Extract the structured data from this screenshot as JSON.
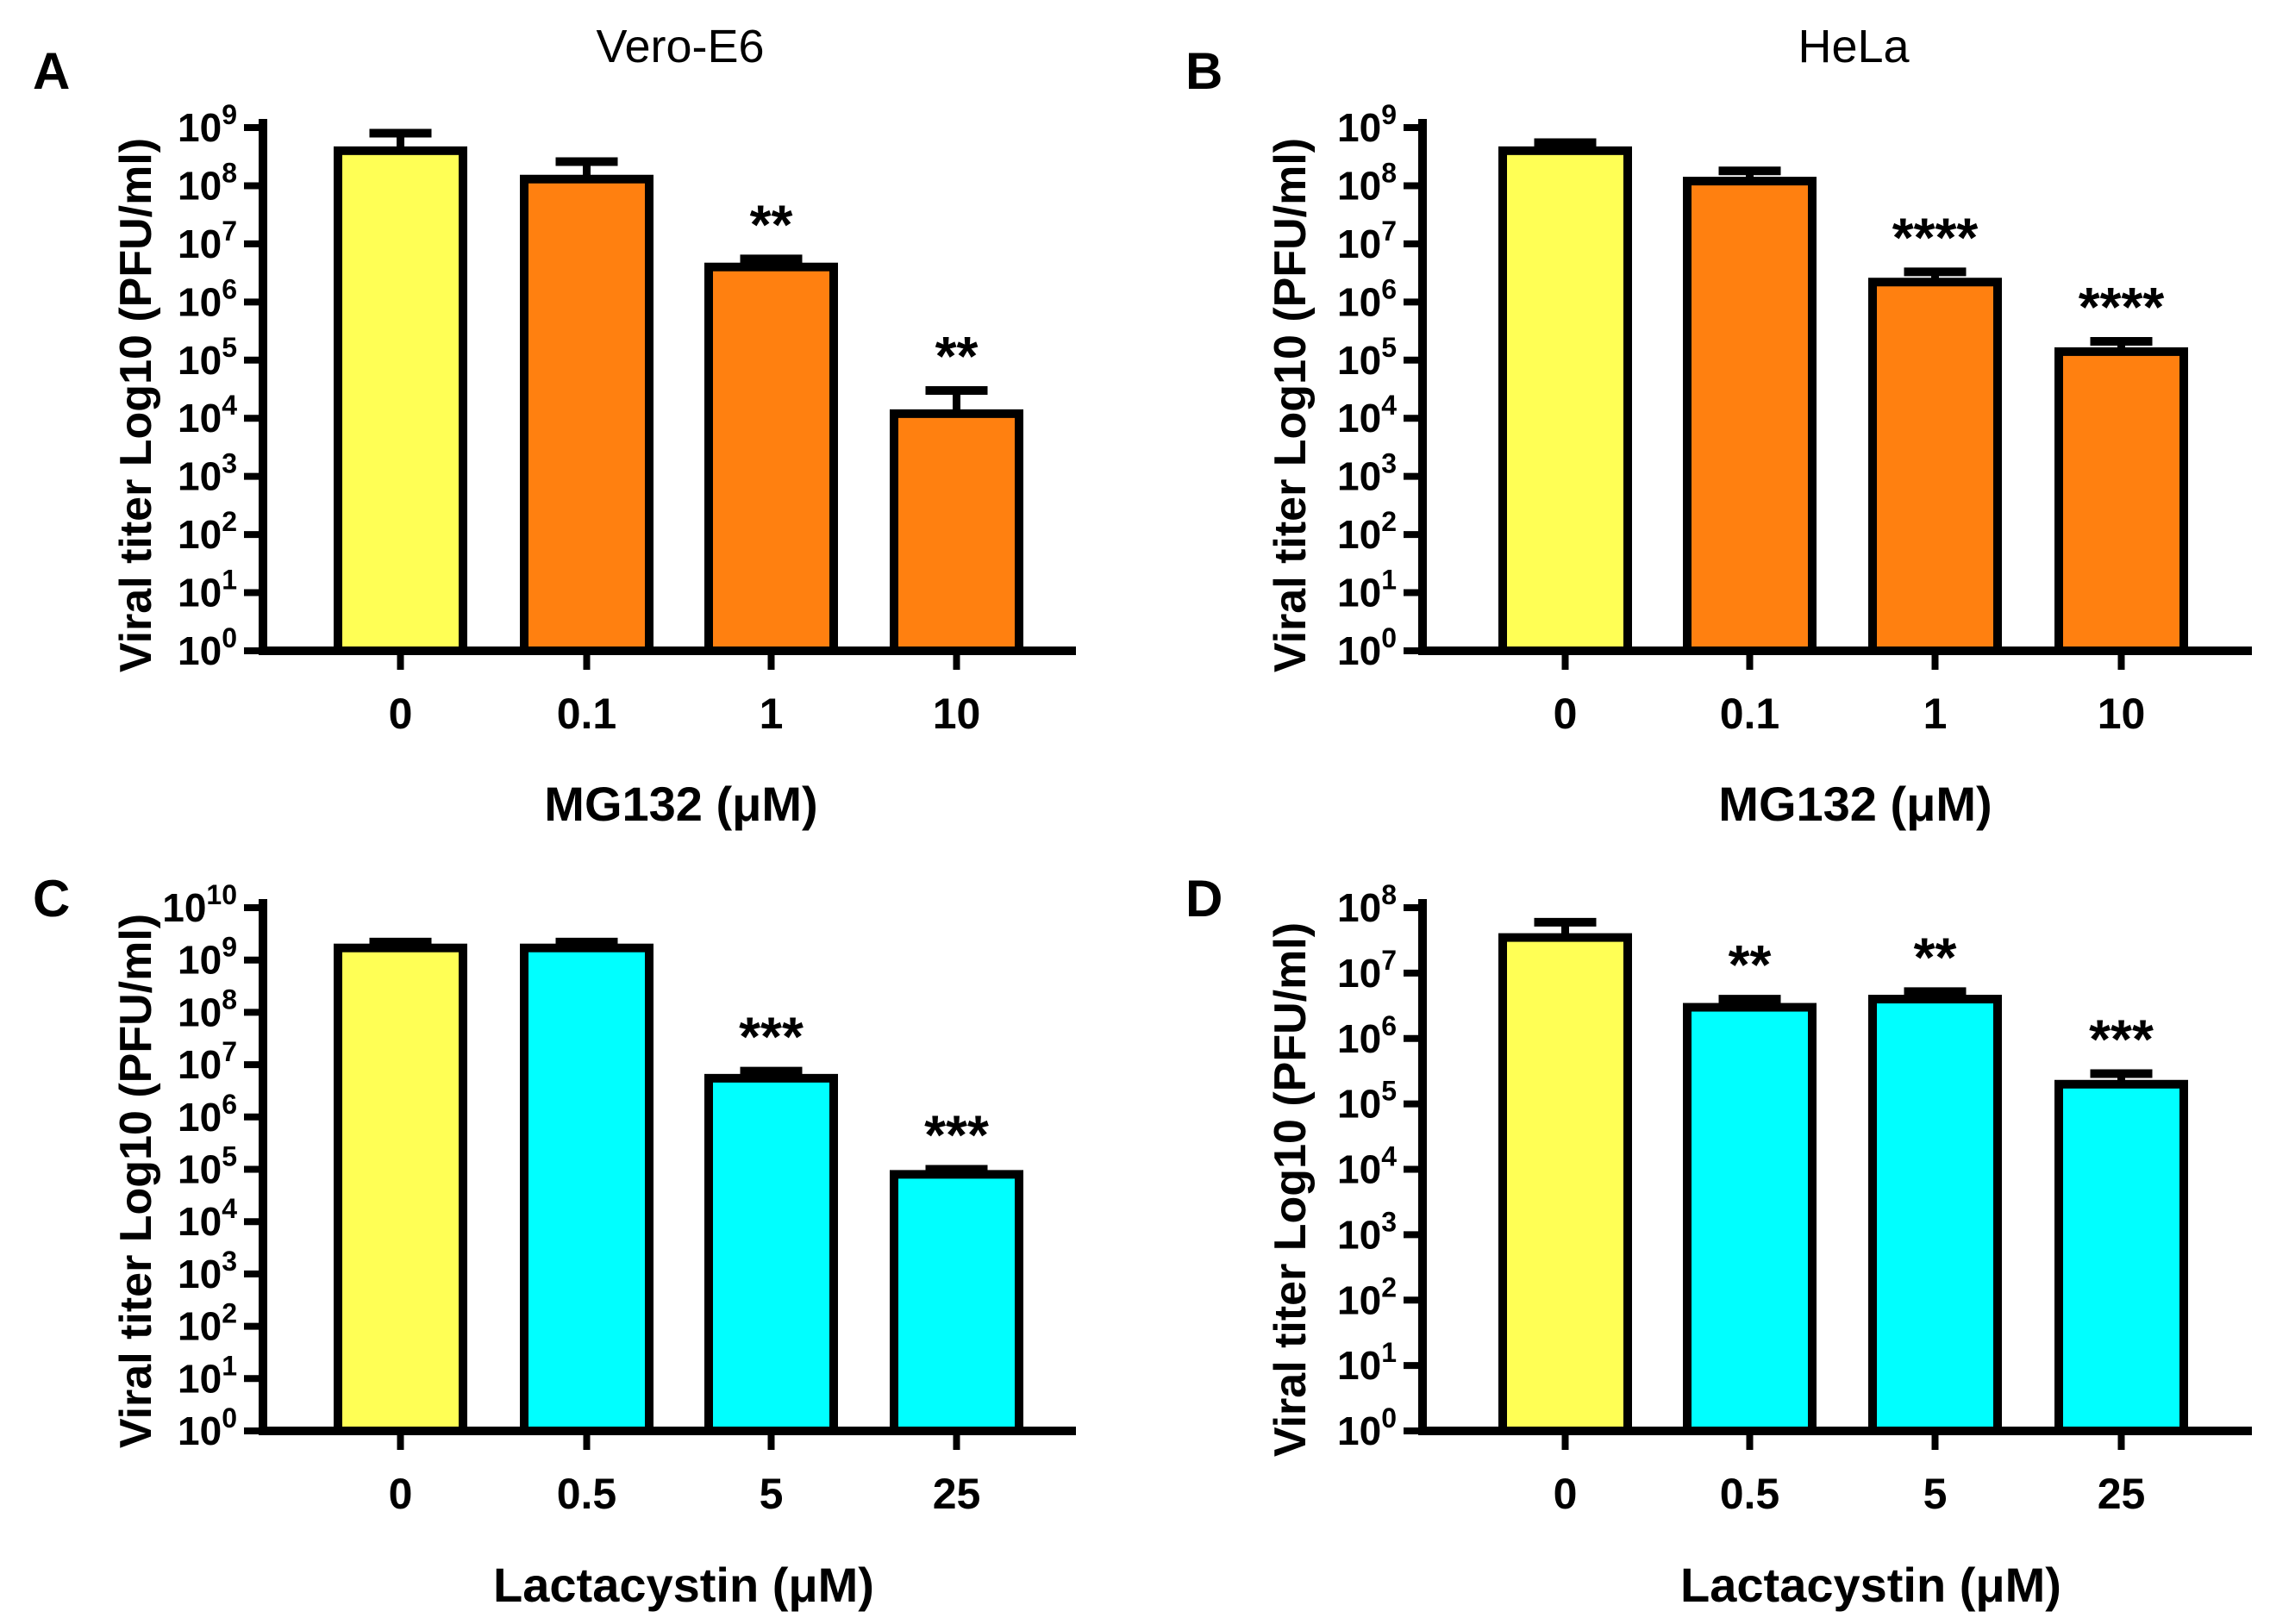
{
  "chart_data": [
    {
      "panel": "A",
      "type": "bar",
      "title": "Vero-E6",
      "xlabel": "MG132 (μM)",
      "ylabel": "Viral titer Log10 (PFU/ml)",
      "yscale": "log10",
      "ylim_exponents": [
        0,
        9
      ],
      "ytick_base": "10",
      "ytick_exponents": [
        "0",
        "1",
        "2",
        "3",
        "4",
        "5",
        "6",
        "7",
        "8",
        "9"
      ],
      "categories": [
        "0",
        "0.1",
        "1",
        "10"
      ],
      "values": [
        400000000,
        130000000,
        4000000,
        12000
      ],
      "errors_upper": [
        800000000,
        260000000,
        5500000,
        30000
      ],
      "significance": [
        "",
        "",
        "**",
        "**"
      ],
      "colors": [
        "#FFFF55",
        "#FF8010",
        "#FF8010",
        "#FF8010"
      ]
    },
    {
      "panel": "B",
      "type": "bar",
      "title": "HeLa",
      "xlabel": "MG132 (μM)",
      "ylabel": "Viral titer Log10 (PFU/ml)",
      "yscale": "log10",
      "ylim_exponents": [
        0,
        9
      ],
      "ytick_base": "10",
      "ytick_exponents": [
        "0",
        "1",
        "2",
        "3",
        "4",
        "5",
        "6",
        "7",
        "8",
        "9"
      ],
      "categories": [
        "0",
        "0.1",
        "1",
        "10"
      ],
      "values": [
        400000000,
        120000000,
        2200000,
        140000
      ],
      "errors_upper": [
        550000000,
        180000000,
        3300000,
        210000
      ],
      "significance": [
        "",
        "",
        "****",
        "****"
      ],
      "colors": [
        "#FFFF55",
        "#FF8010",
        "#FF8010",
        "#FF8010"
      ]
    },
    {
      "panel": "C",
      "type": "bar",
      "title": "",
      "xlabel": "Lactacystin (μM)",
      "ylabel": "Viral titer Log10 (PFU/ml)",
      "yscale": "log10",
      "ylim_exponents": [
        0,
        10
      ],
      "ytick_base": "10",
      "ytick_exponents": [
        "0",
        "1",
        "2",
        "3",
        "4",
        "5",
        "6",
        "7",
        "8",
        "9",
        "10"
      ],
      "categories": [
        "0",
        "0.5",
        "5",
        "25"
      ],
      "values": [
        1700000000,
        1700000000,
        5500000,
        80000
      ],
      "errors_upper": [
        2200000000,
        2200000000,
        7500000,
        100000
      ],
      "significance": [
        "",
        "",
        "***",
        "***"
      ],
      "colors": [
        "#FFFF55",
        "#00FFFF",
        "#00FFFF",
        "#00FFFF"
      ]
    },
    {
      "panel": "D",
      "type": "bar",
      "title": "",
      "xlabel": "Lactacystin (μM)",
      "ylabel": "Viral titer Log10 (PFU/ml)",
      "yscale": "log10",
      "ylim_exponents": [
        0,
        8
      ],
      "ytick_base": "10",
      "ytick_exponents": [
        "0",
        "1",
        "2",
        "3",
        "4",
        "5",
        "6",
        "7",
        "8"
      ],
      "categories": [
        "0",
        "0.5",
        "5",
        "25"
      ],
      "values": [
        35000000,
        3000000,
        4000000,
        200000
      ],
      "errors_upper": [
        60000000,
        4000000,
        5200000,
        290000
      ],
      "significance": [
        "",
        "**",
        "**",
        "***"
      ],
      "colors": [
        "#FFFF55",
        "#00FFFF",
        "#00FFFF",
        "#00FFFF"
      ]
    }
  ]
}
